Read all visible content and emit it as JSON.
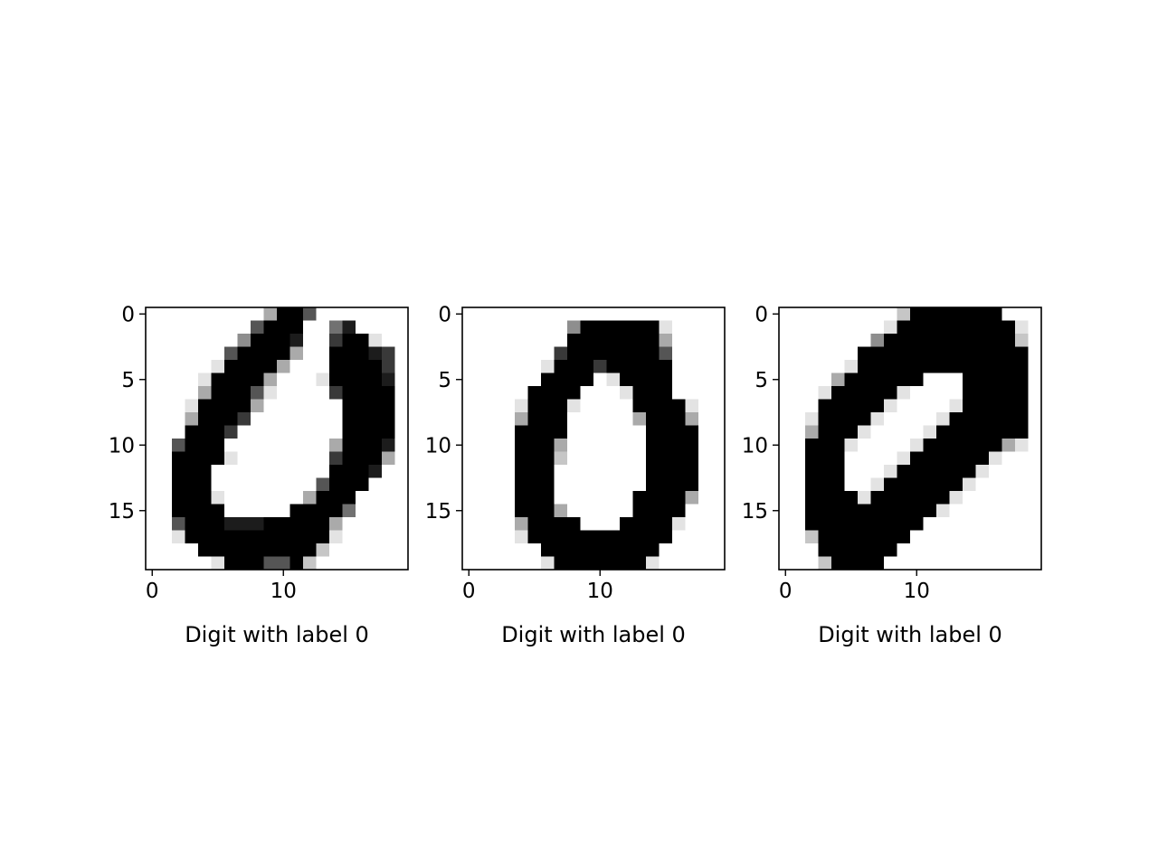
{
  "chart_data": [
    {
      "type": "heatmap",
      "colormap": "gray_r",
      "xlabel": "Digit with label 0",
      "x_ticks": [
        0,
        10
      ],
      "y_ticks": [
        0,
        5,
        10,
        15
      ],
      "xlim": [
        -0.5,
        19.5
      ],
      "ylim": [
        19.5,
        -0.5
      ],
      "values": [
        "00000000039960000000",
        "00000000699900580000",
        "00000004999800799100",
        "00000069999300999870",
        "00000199993000999970",
        "00001999930001999980",
        "00003999610000799990",
        "00019999300000099990",
        "00039997000000099990",
        "00099970000000099990",
        "00699900000000399980",
        "00999910000000799930",
        "00999000000000999800",
        "00999000000006999000",
        "00999100000039990000",
        "00999900000999950000",
        "00699988899999300000",
        "00199999999999100000",
        "00009999999992000000",
        "00000199966920000000"
      ]
    },
    {
      "type": "heatmap",
      "colormap": "gray_r",
      "xlabel": "Digit with label 0",
      "x_ticks": [
        0,
        10
      ],
      "y_ticks": [
        0,
        5,
        10,
        15
      ],
      "xlim": [
        -0.5,
        19.5
      ],
      "ylim": [
        19.5,
        -0.5
      ],
      "values": [
        "00000000000000000000",
        "00000000499999910000",
        "00000000999999930000",
        "00000007999999960000",
        "00000019997999990000",
        "00000099990199990000",
        "00000999900019990000",
        "00001999100009999100",
        "00003999000003999300",
        "00009999000000999900",
        "00009993000000999900",
        "00009992000000999900",
        "00009990000000999900",
        "00009990000000999900",
        "00009990000009999300",
        "00009993000009999000",
        "00003999900099991000",
        "00001999999999990000",
        "00000099999999900000",
        "00000019999999100000"
      ]
    },
    {
      "type": "heatmap",
      "colormap": "gray_r",
      "xlabel": "Digit with label 0",
      "x_ticks": [
        0,
        10
      ],
      "y_ticks": [
        0,
        5,
        10,
        15
      ],
      "xlim": [
        -0.5,
        19.5
      ],
      "ylim": [
        19.5,
        -0.5
      ],
      "values": [
        "00000000029999999000",
        "00000000199999999910",
        "00000004999999999920",
        "00000099999999999990",
        "00000199999999999990",
        "00003999999000999990",
        "00019999910000999990",
        "00099999100001999990",
        "00199991000019999990",
        "00399910000199999990",
        "00999100001999999310",
        "00999000019999991000",
        "00999000199999910000",
        "00999001999999100000",
        "00999919999991000000",
        "00999999999910000000",
        "00999999999000000000",
        "00299999990000000000",
        "00099999900000000000",
        "00029999000000000000"
      ]
    }
  ]
}
